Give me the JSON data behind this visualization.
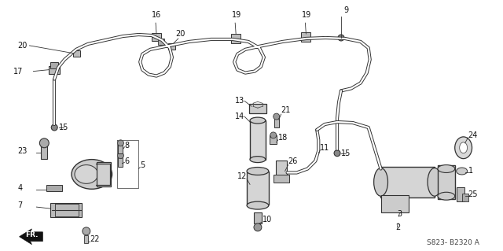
{
  "background_color": "#ffffff",
  "diagram_code": "S823- B2320 A",
  "label_fontsize": 7,
  "label_color": "#111111",
  "tube_color": "#333333",
  "part_color": "#555555",
  "part_fill": "#cccccc"
}
